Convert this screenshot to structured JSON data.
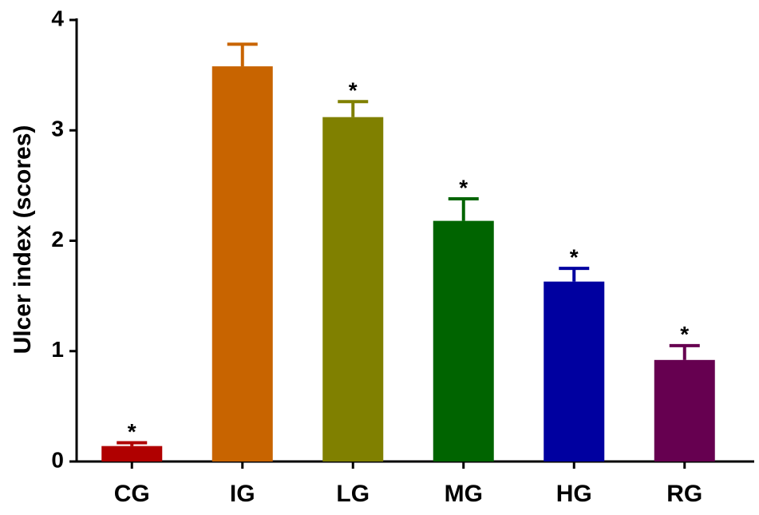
{
  "chart_data": {
    "type": "bar",
    "y_label": "Ulcer index (scores)",
    "categories": [
      "CG",
      "IG",
      "LG",
      "MG",
      "HG",
      "RG"
    ],
    "values": [
      0.14,
      3.58,
      3.12,
      2.18,
      1.63,
      0.92
    ],
    "errors": [
      0.03,
      0.2,
      0.14,
      0.2,
      0.12,
      0.13
    ],
    "colors": [
      "#b00000",
      "#c86400",
      "#808000",
      "#006400",
      "#0000a0",
      "#660050"
    ],
    "annotations": [
      "*",
      null,
      "*",
      "*",
      "*",
      "*"
    ],
    "ylim": [
      0,
      4
    ],
    "yticks": [
      0,
      1,
      2,
      3,
      4
    ],
    "grid": false
  }
}
